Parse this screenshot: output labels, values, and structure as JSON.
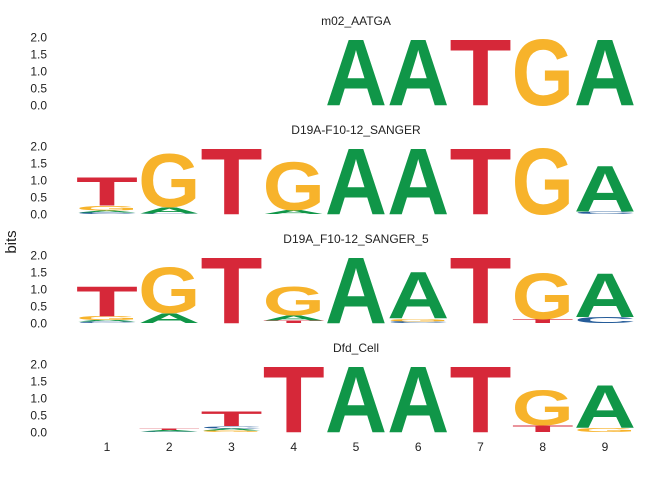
{
  "chart_data": {
    "type": "sequence-logo",
    "ylabel": "bits",
    "positions": [
      "1",
      "2",
      "3",
      "4",
      "5",
      "6",
      "7",
      "8",
      "9"
    ],
    "yticks": [
      "0.0",
      "0.5",
      "1.0",
      "1.5",
      "2.0"
    ],
    "ylim": [
      0,
      2.1
    ],
    "colors": {
      "A": "#109648",
      "C": "#255C99",
      "G": "#F7B32B",
      "T": "#D62839"
    },
    "panels": [
      {
        "title": "m02_AATGA",
        "columns": [
          [],
          [],
          [],
          [],
          [
            {
              "b": "A",
              "h": 2.0
            }
          ],
          [
            {
              "b": "A",
              "h": 2.0
            }
          ],
          [
            {
              "b": "T",
              "h": 2.0
            }
          ],
          [
            {
              "b": "G",
              "h": 2.0
            }
          ],
          [
            {
              "b": "A",
              "h": 2.0
            }
          ]
        ]
      },
      {
        "title": "D19A-F10-12_SANGER",
        "columns": [
          [
            {
              "b": "C",
              "h": 0.05
            },
            {
              "b": "A",
              "h": 0.06
            },
            {
              "b": "G",
              "h": 0.14
            },
            {
              "b": "T",
              "h": 0.85
            }
          ],
          [
            {
              "b": "C",
              "h": 0.02
            },
            {
              "b": "A",
              "h": 0.18
            },
            {
              "b": "G",
              "h": 1.6
            }
          ],
          [
            {
              "b": "T",
              "h": 2.0
            }
          ],
          [
            {
              "b": "A",
              "h": 0.12
            },
            {
              "b": "G",
              "h": 1.45
            }
          ],
          [
            {
              "b": "A",
              "h": 2.0
            }
          ],
          [
            {
              "b": "A",
              "h": 2.0
            }
          ],
          [
            {
              "b": "T",
              "h": 2.0
            }
          ],
          [
            {
              "b": "G",
              "h": 2.0
            }
          ],
          [
            {
              "b": "C",
              "h": 0.08
            },
            {
              "b": "A",
              "h": 1.38
            }
          ]
        ]
      },
      {
        "title": "D19A_F10-12_SANGER_5",
        "columns": [
          [
            {
              "b": "C",
              "h": 0.04
            },
            {
              "b": "A",
              "h": 0.05
            },
            {
              "b": "G",
              "h": 0.12
            },
            {
              "b": "T",
              "h": 0.9
            }
          ],
          [
            {
              "b": "A",
              "h": 0.3
            },
            {
              "b": "G",
              "h": 1.38
            }
          ],
          [
            {
              "b": "T",
              "h": 2.0
            }
          ],
          [
            {
              "b": "T",
              "h": 0.08
            },
            {
              "b": "A",
              "h": 0.15
            },
            {
              "b": "G",
              "h": 0.85
            }
          ],
          [
            {
              "b": "A",
              "h": 2.0
            }
          ],
          [
            {
              "b": "C",
              "h": 0.05
            },
            {
              "b": "G",
              "h": 0.08
            },
            {
              "b": "A",
              "h": 1.4
            }
          ],
          [
            {
              "b": "T",
              "h": 2.0
            }
          ],
          [
            {
              "b": "T",
              "h": 0.12
            },
            {
              "b": "G",
              "h": 1.38
            }
          ],
          [
            {
              "b": "C",
              "h": 0.18
            },
            {
              "b": "A",
              "h": 1.32
            }
          ]
        ]
      },
      {
        "title": "Dfd_Cell",
        "columns": [
          [],
          [
            {
              "b": "C",
              "h": 0.02
            },
            {
              "b": "A",
              "h": 0.04
            },
            {
              "b": "T",
              "h": 0.04
            }
          ],
          [
            {
              "b": "G",
              "h": 0.05
            },
            {
              "b": "A",
              "h": 0.06
            },
            {
              "b": "C",
              "h": 0.06
            },
            {
              "b": "T",
              "h": 0.45
            }
          ],
          [
            {
              "b": "T",
              "h": 2.0
            }
          ],
          [
            {
              "b": "A",
              "h": 2.0
            }
          ],
          [
            {
              "b": "A",
              "h": 2.0
            }
          ],
          [
            {
              "b": "T",
              "h": 2.0
            }
          ],
          [
            {
              "b": "T",
              "h": 0.2
            },
            {
              "b": "G",
              "h": 1.05
            }
          ],
          [
            {
              "b": "G",
              "h": 0.12
            },
            {
              "b": "A",
              "h": 1.28
            }
          ]
        ]
      }
    ]
  }
}
